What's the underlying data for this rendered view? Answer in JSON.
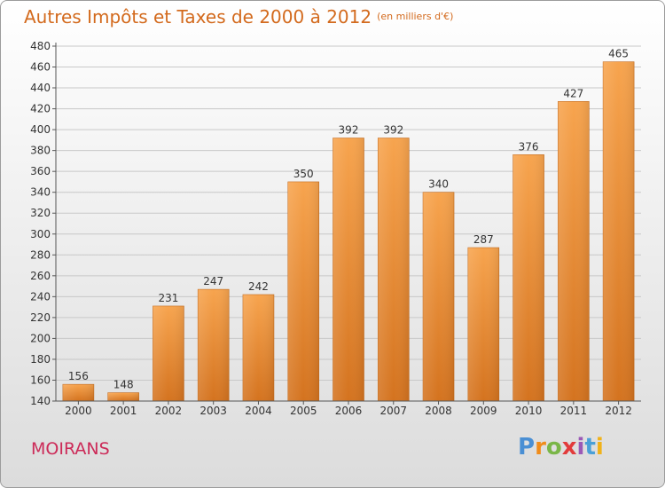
{
  "title": "Autres Impôts et Taxes de 2000 à 2012",
  "subtitle": "(en milliers d'€)",
  "city": "MOIRANS",
  "logo": [
    "P",
    "r",
    "o",
    "x",
    "i",
    "t",
    "i"
  ],
  "colors": {
    "title": "#d36a1d",
    "bar_top": "#f7a44e",
    "bar_bottom": "#d4731f",
    "city": "#cc2a58",
    "grid": "#c8c8c8",
    "axis": "#555555"
  },
  "chart_data": {
    "type": "bar",
    "categories": [
      "2000",
      "2001",
      "2002",
      "2003",
      "2004",
      "2005",
      "2006",
      "2007",
      "2008",
      "2009",
      "2010",
      "2011",
      "2012"
    ],
    "values": [
      156,
      148,
      231,
      247,
      242,
      350,
      392,
      392,
      340,
      287,
      376,
      427,
      465
    ],
    "ylim": [
      140,
      480
    ],
    "yticks": [
      140,
      160,
      180,
      200,
      220,
      240,
      260,
      280,
      300,
      320,
      340,
      360,
      380,
      400,
      420,
      440,
      460,
      480
    ],
    "grid": true,
    "xlabel": "",
    "ylabel": ""
  }
}
